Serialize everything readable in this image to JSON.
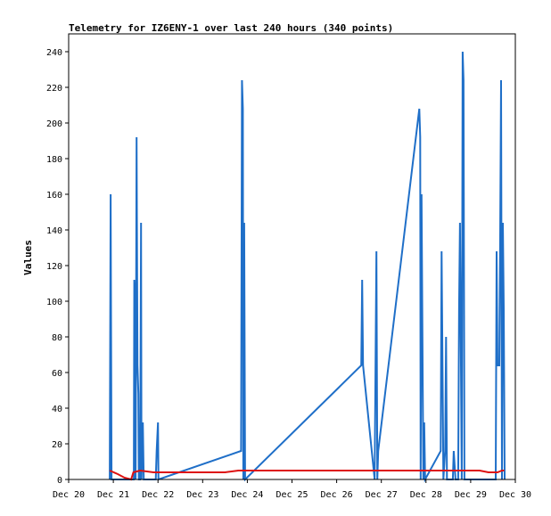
{
  "chart_data": {
    "type": "line",
    "title": "Telemetry for IZ6ENY-1 over last 240 hours (340 points)",
    "xlabel": "",
    "ylabel": "Values",
    "x_tick_labels": [
      "Dec 20",
      "Dec 21",
      "Dec 22",
      "Dec 23",
      "Dec 24",
      "Dec 25",
      "Dec 26",
      "Dec 27",
      "Dec 28",
      "Dec 29",
      "Dec 30"
    ],
    "xlim": [
      0,
      10
    ],
    "ylim": [
      0,
      250
    ],
    "y_ticks": [
      0,
      20,
      40,
      60,
      80,
      100,
      120,
      140,
      160,
      180,
      200,
      220,
      240
    ],
    "grid": false,
    "series": [
      {
        "color": "#1f6fc8",
        "points": [
          [
            0.92,
            0
          ],
          [
            0.94,
            160
          ],
          [
            0.95,
            80
          ],
          [
            0.96,
            0
          ],
          [
            1.46,
            0
          ],
          [
            1.47,
            112
          ],
          [
            1.49,
            96
          ],
          [
            1.5,
            0
          ],
          [
            1.52,
            192
          ],
          [
            1.54,
            64
          ],
          [
            1.56,
            48
          ],
          [
            1.57,
            0
          ],
          [
            1.6,
            0
          ],
          [
            1.62,
            144
          ],
          [
            1.63,
            0
          ],
          [
            1.66,
            32
          ],
          [
            1.68,
            0
          ],
          [
            1.95,
            0
          ],
          [
            1.97,
            16
          ],
          [
            2.0,
            32
          ],
          [
            2.01,
            0
          ],
          [
            3.86,
            16
          ],
          [
            3.88,
            224
          ],
          [
            3.9,
            208
          ],
          [
            3.91,
            0
          ],
          [
            3.93,
            144
          ],
          [
            3.95,
            0
          ],
          [
            6.55,
            64
          ],
          [
            6.57,
            112
          ],
          [
            6.59,
            64
          ],
          [
            6.85,
            0
          ],
          [
            6.87,
            64
          ],
          [
            6.89,
            128
          ],
          [
            6.91,
            0
          ],
          [
            6.93,
            16
          ],
          [
            7.85,
            208
          ],
          [
            7.87,
            192
          ],
          [
            7.88,
            0
          ],
          [
            7.9,
            160
          ],
          [
            7.92,
            80
          ],
          [
            7.94,
            0
          ],
          [
            7.96,
            32
          ],
          [
            7.98,
            0
          ],
          [
            8.33,
            16
          ],
          [
            8.35,
            128
          ],
          [
            8.37,
            64
          ],
          [
            8.39,
            0
          ],
          [
            8.43,
            16
          ],
          [
            8.45,
            80
          ],
          [
            8.47,
            0
          ],
          [
            8.6,
            0
          ],
          [
            8.62,
            16
          ],
          [
            8.64,
            8
          ],
          [
            8.66,
            0
          ],
          [
            8.72,
            0
          ],
          [
            8.74,
            96
          ],
          [
            8.76,
            144
          ],
          [
            8.78,
            72
          ],
          [
            8.8,
            0
          ],
          [
            8.82,
            240
          ],
          [
            8.84,
            224
          ],
          [
            8.86,
            0
          ],
          [
            9.56,
            0
          ],
          [
            9.58,
            128
          ],
          [
            9.6,
            64
          ],
          [
            9.64,
            64
          ],
          [
            9.66,
            136
          ],
          [
            9.68,
            224
          ],
          [
            9.7,
            0
          ],
          [
            9.72,
            144
          ],
          [
            9.74,
            96
          ],
          [
            9.76,
            0
          ]
        ]
      },
      {
        "color": "#dd1111",
        "points": [
          [
            0.92,
            5
          ],
          [
            1.1,
            3
          ],
          [
            1.25,
            1
          ],
          [
            1.4,
            0
          ],
          [
            1.45,
            4
          ],
          [
            1.6,
            5
          ],
          [
            1.9,
            4
          ],
          [
            2.5,
            4
          ],
          [
            3.5,
            4
          ],
          [
            3.8,
            5
          ],
          [
            5,
            5
          ],
          [
            6,
            5
          ],
          [
            7,
            5
          ],
          [
            8,
            5
          ],
          [
            8.5,
            5
          ],
          [
            9,
            5
          ],
          [
            9.2,
            5
          ],
          [
            9.4,
            4
          ],
          [
            9.6,
            4
          ],
          [
            9.7,
            5
          ],
          [
            9.75,
            5
          ]
        ]
      },
      {
        "color": "#000000",
        "points": [
          [
            0,
            0
          ],
          [
            10,
            0
          ]
        ]
      }
    ]
  }
}
